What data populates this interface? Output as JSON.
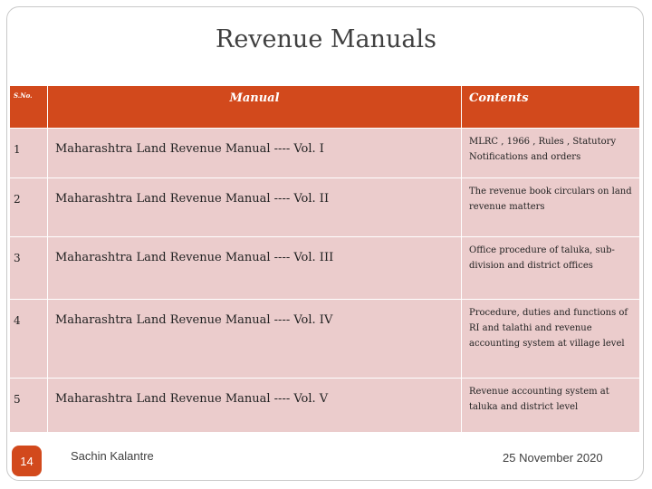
{
  "slide": {
    "title": "Revenue Manuals",
    "page_number": "14",
    "author": "Sachin Kalantre",
    "date": "25 November 2020"
  },
  "table": {
    "headers": {
      "sno": "S.No.",
      "manual": "Manual",
      "contents": "Contents"
    },
    "rows": [
      {
        "sno": "1",
        "manual": "Maharashtra Land Revenue Manual ---- Vol. I",
        "contents": "MLRC , 1966 , Rules , Statutory Notifications and orders"
      },
      {
        "sno": "2",
        "manual": "Maharashtra Land Revenue Manual ---- Vol. II",
        "contents": "The revenue book circulars on land revenue matters"
      },
      {
        "sno": "3",
        "manual": "Maharashtra Land Revenue Manual ---- Vol. III",
        "contents": "Office procedure of taluka, sub-division and district offices"
      },
      {
        "sno": "4",
        "manual": "Maharashtra Land Revenue Manual ---- Vol. IV",
        "contents": "Procedure, duties and functions of RI and talathi and revenue accounting system at village level"
      },
      {
        "sno": "5",
        "manual": "Maharashtra Land Revenue Manual ---- Vol. V",
        "contents": "Revenue accounting system at taluka and district level"
      }
    ]
  }
}
